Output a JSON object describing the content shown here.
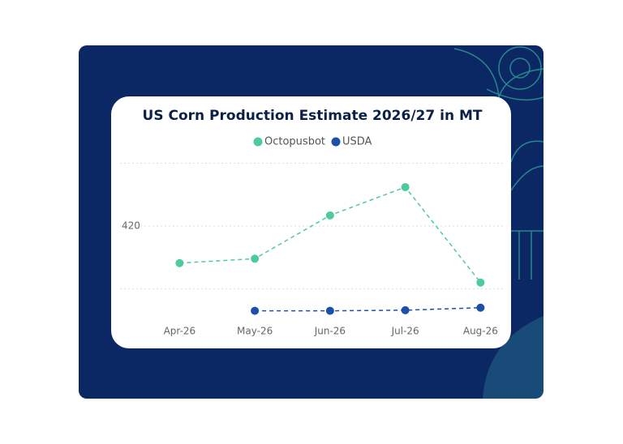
{
  "chart_data": {
    "type": "line",
    "title": "US Corn Production Estimate 2026/27 in MT",
    "categories": [
      "Apr-26",
      "May-26",
      "Jun-26",
      "Jul-26",
      "Aug-26"
    ],
    "series": [
      {
        "name": "Octopusbot",
        "color": "#4ecb9a",
        "values": [
          414.1,
          414.8,
          421.7,
          426.2,
          411.0
        ]
      },
      {
        "name": "USDA",
        "color": "#1c4fa8",
        "values": [
          null,
          406.5,
          406.5,
          406.6,
          407.0
        ]
      }
    ],
    "ylim": [
      404,
      432
    ],
    "yticks": [
      420
    ],
    "grid_values": [
      410,
      420,
      430
    ],
    "grid": true
  }
}
